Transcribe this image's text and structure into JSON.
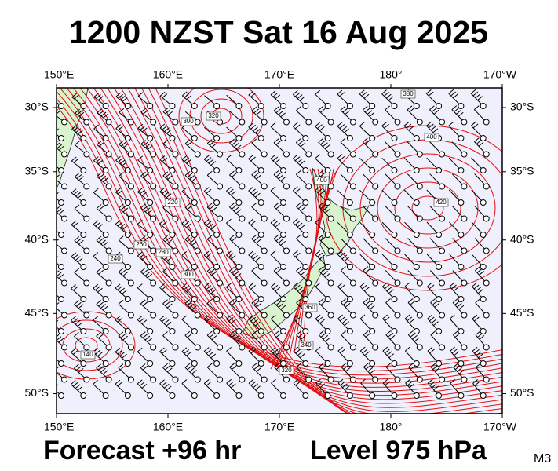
{
  "title": "1200 NZST Sat 16 Aug 2025",
  "map": {
    "lon_ticks": [
      {
        "value": 150,
        "label": "150°E"
      },
      {
        "value": 160,
        "label": "160°E"
      },
      {
        "value": 170,
        "label": "170°E"
      },
      {
        "value": 180,
        "label": "180°"
      },
      {
        "value": 190,
        "label": "170°W"
      }
    ],
    "lat_ticks": [
      {
        "value": -30,
        "label": "30°S"
      },
      {
        "value": -35,
        "label": "35°S"
      },
      {
        "value": -40,
        "label": "40°S"
      },
      {
        "value": -45,
        "label": "45°S"
      },
      {
        "value": -50,
        "label": "50°S"
      }
    ],
    "contour_labels": [
      "320",
      "300",
      "380",
      "400",
      "420",
      "220",
      "240",
      "260",
      "280",
      "300",
      "340",
      "140",
      "360",
      "320",
      "400"
    ]
  },
  "footer": {
    "forecast": "Forecast +96 hr",
    "level": "Level 975 hPa",
    "model": "M3"
  }
}
